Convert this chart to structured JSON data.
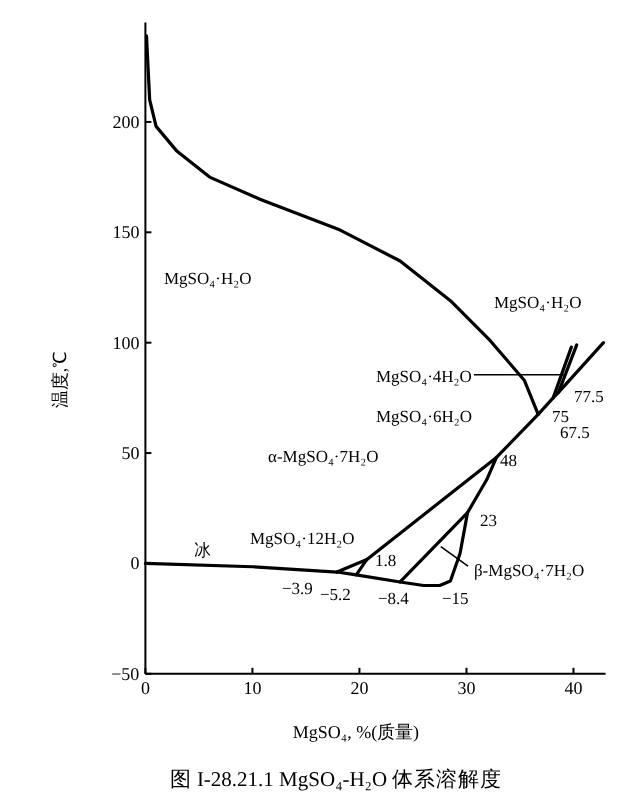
{
  "chart_data": {
    "type": "line",
    "title": "图 I-28.21.1  MgSO₄-H₂O 体系溶解度",
    "xlabel": "MgSO₄, %(质量)",
    "ylabel": "温度,℃",
    "xlim": [
      0,
      43
    ],
    "ylim": [
      -50,
      245
    ],
    "xticks": [
      0,
      10,
      20,
      30,
      40
    ],
    "yticks": [
      -50,
      0,
      50,
      100,
      150,
      200
    ],
    "grid": false,
    "marker": "none",
    "line_style": "solid",
    "series": [
      {
        "color": "#000000",
        "x": [
          0.1,
          0.4,
          1,
          2.9,
          6,
          10.7,
          18.2,
          23.8,
          28.5,
          32.2,
          35.4,
          36.7
        ],
        "values": [
          239,
          210,
          198,
          187,
          175,
          165,
          151,
          137,
          119,
          101,
          83,
          67.5
        ]
      },
      {
        "color": "#000000",
        "x": [
          20.7,
          32.8,
          36.7,
          38.1,
          38.6,
          42.8
        ],
        "values": [
          1.8,
          48,
          67.5,
          75,
          77.5,
          100
        ]
      },
      {
        "color": "#000000",
        "x": [
          38.1,
          39.8
        ],
        "values": [
          75,
          98
        ]
      },
      {
        "color": "#000000",
        "x": [
          38.6,
          40.3
        ],
        "values": [
          77.5,
          99
        ]
      },
      {
        "color": "#000000",
        "x": [
          0,
          10,
          17.9,
          19.7,
          23.8,
          26,
          27.5,
          28.5,
          29.4,
          30.1,
          31.9,
          32.8
        ],
        "values": [
          0,
          -1.5,
          -3.9,
          -5.2,
          -8.4,
          -10,
          -10,
          -8,
          4.5,
          23,
          38,
          48
        ]
      },
      {
        "color": "#000000",
        "x": [
          17.9,
          20.7,
          19.7
        ],
        "values": [
          -3.9,
          1.8,
          -5.2
        ]
      },
      {
        "color": "#000000",
        "x": [
          23.8,
          30.1
        ],
        "values": [
          -8.4,
          23
        ]
      }
    ],
    "annotations": [
      "MgSO₄·H₂O",
      "MgSO₄·H₂O",
      {
        "text": "MgSO₄·4H₂O",
        "x": 39.2,
        "y": 85.5
      },
      "MgSO₄·6H₂O",
      "α-MgSO₄·7H₂O",
      "MgSO₄·12H₂O",
      "冰",
      {
        "text": "β-MgSO₄·7H₂O",
        "x": 27.6,
        "y": 7.6
      },
      {
        "text": "77.5",
        "x": 38.6,
        "y": 77.5
      },
      {
        "text": "75",
        "x": 38.1,
        "y": 75
      },
      {
        "text": "67.5",
        "x": 36.7,
        "y": 67.5
      },
      {
        "text": "48",
        "x": 32.8,
        "y": 48
      },
      {
        "text": "23",
        "x": 30.1,
        "y": 23
      },
      {
        "text": "1.8",
        "x": 20.7,
        "y": 1.8
      },
      {
        "text": "−3.9",
        "x": 17.9,
        "y": -3.9
      },
      {
        "text": "−5.2",
        "x": 19.7,
        "y": -5.2
      },
      {
        "text": "−8.4",
        "x": 23.8,
        "y": -8.4
      },
      "−15"
    ]
  }
}
